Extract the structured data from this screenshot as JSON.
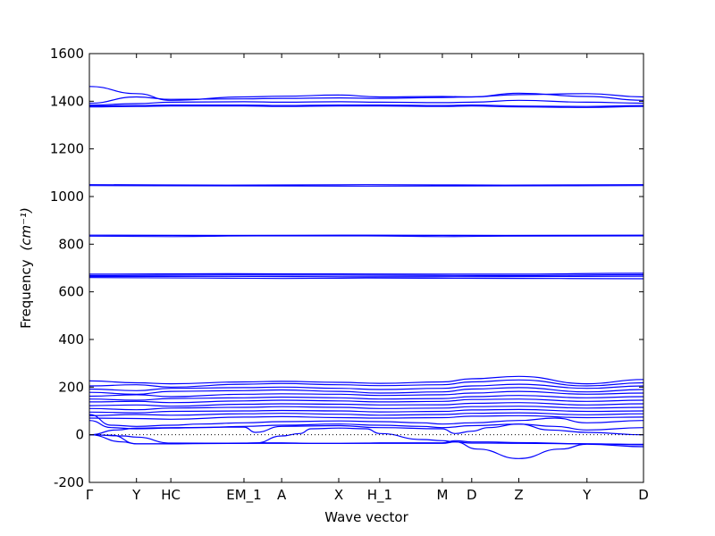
{
  "chart_data": {
    "type": "line",
    "title": "",
    "xlabel": "Wave vector",
    "ylabel": "Frequency",
    "ylabel_unit": "(cm⁻¹)",
    "ylim": [
      -200,
      1600
    ],
    "y_ticks": [
      -200,
      0,
      200,
      400,
      600,
      800,
      1000,
      1200,
      1400,
      1600
    ],
    "x_ticks": [
      "Γ",
      "Y",
      "HC",
      "EM_1",
      "A",
      "X",
      "H_1",
      "M",
      "D",
      "Z",
      "Y",
      "D"
    ],
    "x_tick_positions": [
      0.0,
      0.085,
      0.147,
      0.279,
      0.347,
      0.45,
      0.524,
      0.637,
      0.69,
      0.775,
      0.898,
      1.0
    ],
    "zero_line": "dotted",
    "grid": false,
    "legend": "none",
    "line_color": "#0000ff",
    "series": [
      {
        "x": [
          0,
          0.085,
          0.147,
          0.279,
          0.347,
          0.45,
          0.524,
          0.637,
          0.69,
          0.775,
          0.898,
          1.0
        ],
        "values": [
          1462,
          1432,
          1404,
          1418,
          1421,
          1426,
          1418,
          1420,
          1418,
          1428,
          1432,
          1418
        ]
      },
      {
        "x": [
          0,
          0.085,
          0.147,
          0.279,
          0.347,
          0.45,
          0.524,
          0.637,
          0.69,
          0.775,
          0.898,
          1.0
        ],
        "values": [
          1392,
          1418,
          1408,
          1410,
          1412,
          1414,
          1412,
          1416,
          1418,
          1434,
          1420,
          1404
        ]
      },
      {
        "x": [
          0,
          0.085,
          0.147,
          0.279,
          0.347,
          0.45,
          0.524,
          0.637,
          0.69,
          0.775,
          0.898,
          1.0
        ],
        "values": [
          1384,
          1390,
          1396,
          1398,
          1396,
          1398,
          1396,
          1394,
          1396,
          1404,
          1396,
          1392
        ]
      },
      {
        "x": [
          0,
          0.085,
          0.147,
          0.279,
          0.347,
          0.45,
          0.524,
          0.637,
          0.69,
          0.775,
          0.898,
          1.0
        ],
        "values": [
          1380,
          1382,
          1384,
          1384,
          1382,
          1384,
          1384,
          1382,
          1384,
          1380,
          1378,
          1382
        ]
      },
      {
        "x": [
          0,
          0.085,
          0.147,
          0.279,
          0.347,
          0.45,
          0.524,
          0.637,
          0.69,
          0.775,
          0.898,
          1.0
        ],
        "values": [
          1376,
          1378,
          1380,
          1380,
          1378,
          1380,
          1380,
          1378,
          1380,
          1376,
          1374,
          1378
        ]
      },
      {
        "x": [
          0,
          0.25,
          0.5,
          0.75,
          1.0
        ],
        "values": [
          1050,
          1048,
          1050,
          1048,
          1050
        ]
      },
      {
        "x": [
          0,
          0.25,
          0.5,
          0.75,
          1.0
        ],
        "values": [
          1046,
          1045,
          1044,
          1045,
          1046
        ]
      },
      {
        "x": [
          0,
          0.25,
          0.5,
          0.75,
          1.0
        ],
        "values": [
          838,
          837,
          838,
          837,
          838
        ]
      },
      {
        "x": [
          0,
          0.15,
          0.3,
          0.5,
          0.637,
          0.75,
          1.0
        ],
        "values": [
          834,
          832,
          835,
          835,
          832,
          834,
          835
        ]
      },
      {
        "x": [
          0,
          0.25,
          0.5,
          0.75,
          1.0
        ],
        "values": [
          674,
          676,
          675,
          674,
          678
        ]
      },
      {
        "x": [
          0,
          0.25,
          0.5,
          0.75,
          1.0
        ],
        "values": [
          668,
          671,
          670,
          668,
          672
        ]
      },
      {
        "x": [
          0,
          0.25,
          0.5,
          0.75,
          1.0
        ],
        "values": [
          664,
          665,
          663,
          664,
          666
        ]
      },
      {
        "x": [
          0,
          0.2,
          0.35,
          0.5,
          0.7,
          0.85,
          1.0
        ],
        "values": [
          660,
          658,
          656,
          658,
          657,
          656,
          655
        ]
      },
      {
        "x": [
          0,
          0.085,
          0.147,
          0.279,
          0.347,
          0.45,
          0.524,
          0.637,
          0.69,
          0.775,
          0.898,
          1.0
        ],
        "values": [
          226,
          218,
          214,
          222,
          224,
          220,
          216,
          222,
          235,
          245,
          214,
          232
        ]
      },
      {
        "x": [
          0,
          0.085,
          0.147,
          0.279,
          0.347,
          0.45,
          0.524,
          0.637,
          0.69,
          0.775,
          0.898,
          1.0
        ],
        "values": [
          205,
          210,
          200,
          212,
          215,
          210,
          206,
          210,
          222,
          230,
          205,
          218
        ]
      },
      {
        "x": [
          0,
          0.085,
          0.147,
          0.279,
          0.347,
          0.45,
          0.524,
          0.637,
          0.69,
          0.775,
          0.898,
          1.0
        ],
        "values": [
          192,
          185,
          195,
          198,
          200,
          195,
          190,
          195,
          205,
          212,
          195,
          205
        ]
      },
      {
        "x": [
          0,
          0.085,
          0.147,
          0.279,
          0.347,
          0.45,
          0.524,
          0.637,
          0.69,
          0.775,
          0.898,
          1.0
        ],
        "values": [
          178,
          170,
          182,
          185,
          188,
          182,
          175,
          180,
          192,
          198,
          180,
          190
        ]
      },
      {
        "x": [
          0,
          0.085,
          0.147,
          0.279,
          0.347,
          0.45,
          0.524,
          0.637,
          0.69,
          0.775,
          0.898,
          1.0
        ],
        "values": [
          162,
          168,
          160,
          170,
          172,
          170,
          165,
          168,
          175,
          182,
          170,
          175
        ]
      },
      {
        "x": [
          0,
          0.085,
          0.147,
          0.279,
          0.347,
          0.45,
          0.524,
          0.637,
          0.69,
          0.775,
          0.898,
          1.0
        ],
        "values": [
          150,
          145,
          152,
          155,
          158,
          155,
          150,
          152,
          160,
          165,
          155,
          160
        ]
      },
      {
        "x": [
          0,
          0.085,
          0.147,
          0.279,
          0.347,
          0.45,
          0.524,
          0.637,
          0.69,
          0.775,
          0.898,
          1.0
        ],
        "values": [
          138,
          140,
          135,
          142,
          145,
          142,
          138,
          140,
          148,
          150,
          140,
          145
        ]
      },
      {
        "x": [
          0,
          0.085,
          0.147,
          0.279,
          0.347,
          0.45,
          0.524,
          0.637,
          0.69,
          0.775,
          0.898,
          1.0
        ],
        "values": [
          122,
          125,
          120,
          128,
          130,
          128,
          125,
          126,
          132,
          135,
          125,
          130
        ]
      },
      {
        "x": [
          0,
          0.085,
          0.147,
          0.279,
          0.347,
          0.45,
          0.524,
          0.637,
          0.69,
          0.775,
          0.898,
          1.0
        ],
        "values": [
          110,
          105,
          112,
          115,
          118,
          115,
          110,
          112,
          118,
          120,
          112,
          115
        ]
      },
      {
        "x": [
          0,
          0.085,
          0.147,
          0.279,
          0.347,
          0.45,
          0.524,
          0.637,
          0.69,
          0.775,
          0.898,
          1.0
        ],
        "values": [
          95,
          92,
          98,
          100,
          102,
          100,
          96,
          98,
          104,
          106,
          98,
          100
        ]
      },
      {
        "x": [
          0,
          0.085,
          0.147,
          0.279,
          0.347,
          0.45,
          0.524,
          0.637,
          0.69,
          0.775,
          0.898,
          1.0
        ],
        "values": [
          80,
          85,
          82,
          88,
          90,
          86,
          82,
          85,
          90,
          92,
          84,
          88
        ]
      },
      {
        "x": [
          0,
          0.085,
          0.147,
          0.279,
          0.347,
          0.45,
          0.524,
          0.637,
          0.69,
          0.775,
          0.898,
          1.0
        ],
        "values": [
          70,
          68,
          65,
          74,
          76,
          72,
          70,
          72,
          78,
          80,
          72,
          74
        ]
      },
      {
        "x": [
          0,
          0.04,
          0.085,
          0.147,
          0.2,
          0.279,
          0.347,
          0.45,
          0.524,
          0.6,
          0.637,
          0.69,
          0.775,
          0.84,
          0.898,
          1.0
        ],
        "values": [
          85,
          40,
          35,
          40,
          45,
          50,
          55,
          58,
          55,
          50,
          45,
          50,
          60,
          70,
          50,
          60
        ]
      },
      {
        "x": [
          0,
          0.04,
          0.085,
          0.147,
          0.2,
          0.279,
          0.347,
          0.45,
          0.524,
          0.6,
          0.637,
          0.69,
          0.775,
          0.84,
          0.898,
          1.0
        ],
        "values": [
          60,
          30,
          25,
          28,
          30,
          35,
          40,
          45,
          40,
          35,
          30,
          38,
          45,
          35,
          20,
          30
        ]
      },
      {
        "x": [
          0,
          0.05,
          0.085,
          0.147,
          0.279,
          0.3,
          0.347,
          0.45,
          0.524,
          0.637,
          0.66,
          0.69,
          0.72,
          0.775,
          0.83,
          0.898,
          1.0
        ],
        "values": [
          0,
          20,
          28,
          30,
          32,
          10,
          35,
          38,
          30,
          25,
          5,
          15,
          30,
          45,
          20,
          10,
          0
        ]
      },
      {
        "x": [
          0,
          0.06,
          0.085,
          0.147,
          0.2,
          0.279,
          0.3,
          0.347,
          0.4,
          0.45,
          0.5,
          0.524,
          0.637,
          0.66,
          0.69,
          0.72,
          0.775,
          0.898,
          1.0
        ],
        "values": [
          0,
          -30,
          -38,
          -38,
          -36,
          -35,
          -34,
          -34,
          -36,
          -36,
          -35,
          -34,
          -34,
          -25,
          -30,
          -30,
          -33,
          -38,
          -42
        ]
      },
      {
        "x": [
          0,
          0.06,
          0.085,
          0.147,
          0.279,
          0.3,
          0.347,
          0.38,
          0.4,
          0.45,
          0.5,
          0.524,
          0.6,
          0.637,
          0.66,
          0.7,
          0.775,
          0.85,
          0.898,
          1.0
        ],
        "values": [
          0,
          -5,
          -10,
          -35,
          -36,
          -35,
          -5,
          5,
          25,
          28,
          25,
          5,
          -20,
          -25,
          -30,
          -60,
          -100,
          -60,
          -40,
          -50
        ]
      },
      {
        "x": [
          0,
          0.04,
          0.085,
          0.147,
          0.279,
          0.347,
          0.45,
          0.524,
          0.637,
          0.66,
          0.69,
          0.72,
          0.775,
          0.898,
          1.0
        ],
        "values": [
          0,
          -2,
          -38,
          -38,
          -36,
          -36,
          -36,
          -36,
          -36,
          -30,
          -35,
          -35,
          -36,
          -38,
          -40
        ]
      }
    ]
  }
}
